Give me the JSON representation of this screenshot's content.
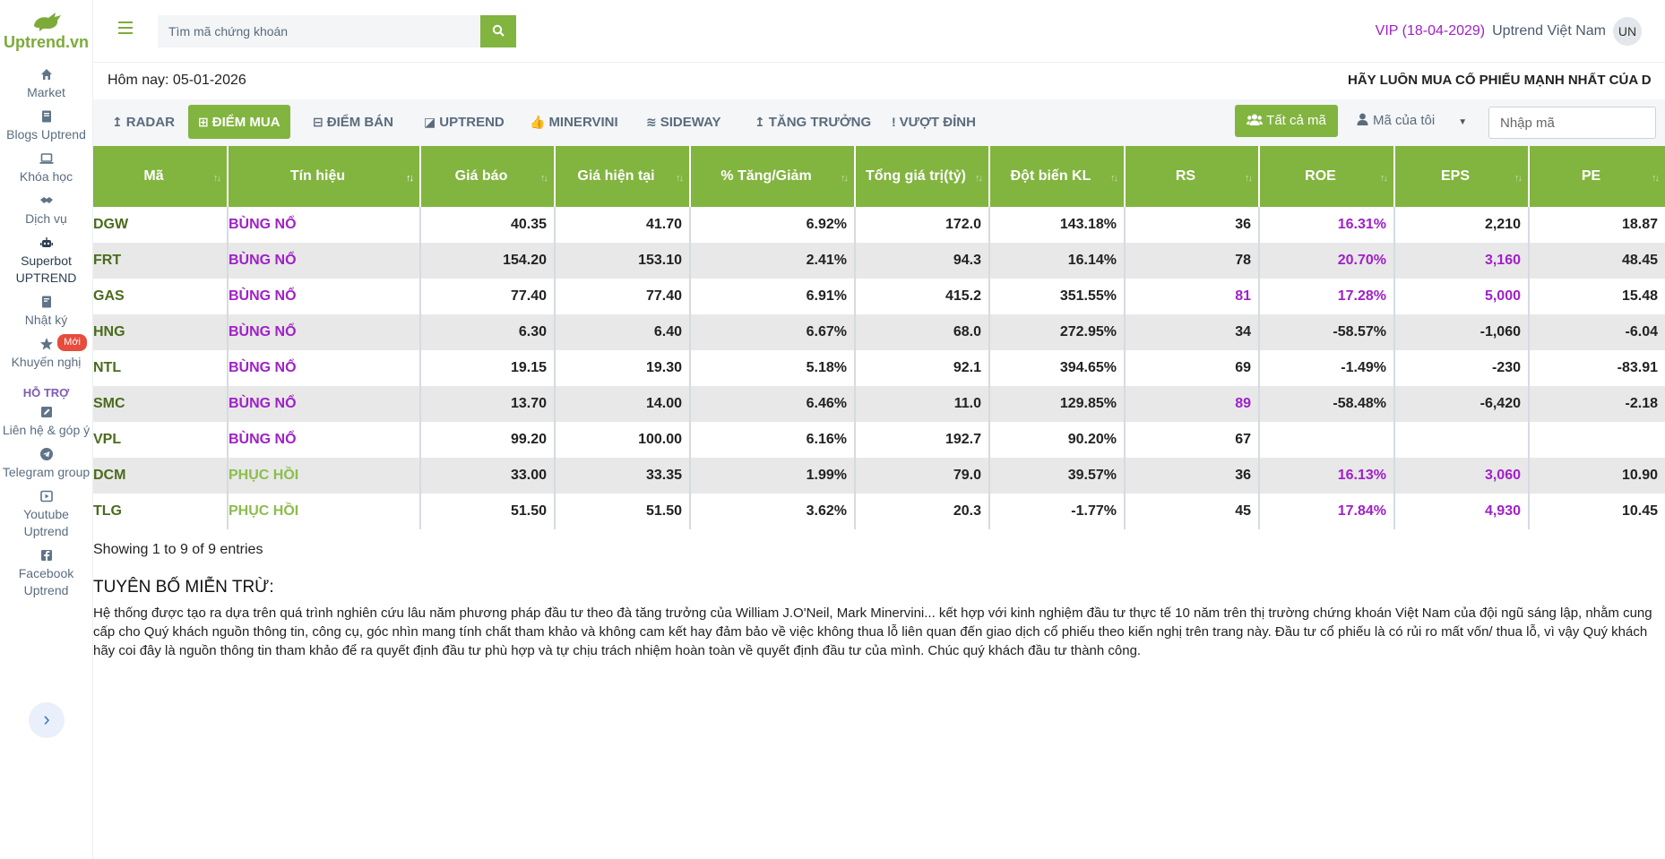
{
  "sidebar": {
    "logo": "Uptrend.vn",
    "items": [
      {
        "label": "Market",
        "icon": "home-icon"
      },
      {
        "label": "Blogs Uptrend",
        "icon": "book-icon"
      },
      {
        "label": "Khóa học",
        "icon": "laptop-icon"
      },
      {
        "label": "Dịch vụ",
        "icon": "handshake-icon"
      },
      {
        "label": "Superbot UPTREND",
        "icon": "robot-icon"
      },
      {
        "label": "Nhật ký",
        "icon": "journal-icon"
      },
      {
        "label": "Khuyến nghị",
        "icon": "star-icon",
        "badge": "Mới"
      }
    ],
    "section": "HỖ TRỢ",
    "support": [
      {
        "label": "Liên hệ & góp ý",
        "icon": "edit-icon"
      },
      {
        "label": "Telegram group",
        "icon": "telegram-icon"
      },
      {
        "label": "Youtube Uptrend",
        "icon": "youtube-icon"
      },
      {
        "label": "Facebook Uptrend",
        "icon": "facebook-icon"
      }
    ],
    "toggle": "›"
  },
  "header": {
    "search_placeholder": "Tìm mã chứng khoán",
    "vip": "VIP (18-04-2029)",
    "username": "Uptrend Việt Nam",
    "avatar": "UN"
  },
  "date_row": {
    "today": "Hôm nay: 05-01-2026",
    "marquee": "HÃY LUÔN MUA CỔ PHIẾU MẠNH NHẤT CỦA D"
  },
  "tabs": [
    {
      "label": "RADAR",
      "icon": "↥"
    },
    {
      "label": "ĐIỂM MUA",
      "icon": "⊞",
      "active": true
    },
    {
      "label": "ĐIỂM BÁN",
      "icon": "⊟"
    },
    {
      "label": "UPTREND",
      "icon": "◪"
    },
    {
      "label": "MINERVINI",
      "icon": "👍"
    },
    {
      "label": "SIDEWAY",
      "icon": "≋"
    },
    {
      "label": "TĂNG TRƯỞNG",
      "icon": "↥"
    },
    {
      "label": "VƯỢT ĐỈNH",
      "icon": "!"
    }
  ],
  "filters": {
    "all_label": "Tất cả mã",
    "my_codes": "Mã của tôi",
    "code_placeholder": "Nhập mã"
  },
  "table": {
    "columns": [
      "Mã",
      "Tín hiệu",
      "Giá báo",
      "Giá hiện tại",
      "% Tăng/Giảm",
      "Tổng giá trị(tỷ)",
      "Đột biến KL",
      "RS",
      "ROE",
      "EPS",
      "PE"
    ],
    "rows": [
      {
        "code": "DGW",
        "signal": "BÙNG NỔ",
        "price_alert": "40.35",
        "price_now": "41.70",
        "change": "6.92%",
        "value": "172.0",
        "vol_spike": "143.18%",
        "rs": "36",
        "roe": "16.31%",
        "eps": "2,210",
        "pe": "18.87"
      },
      {
        "code": "FRT",
        "signal": "BÙNG NỔ",
        "price_alert": "154.20",
        "price_now": "153.10",
        "change": "2.41%",
        "value": "94.3",
        "vol_spike": "16.14%",
        "rs": "78",
        "roe": "20.70%",
        "eps": "3,160",
        "pe": "48.45"
      },
      {
        "code": "GAS",
        "signal": "BÙNG NỔ",
        "price_alert": "77.40",
        "price_now": "77.40",
        "change": "6.91%",
        "value": "415.2",
        "vol_spike": "351.55%",
        "rs": "81",
        "roe": "17.28%",
        "eps": "5,000",
        "pe": "15.48"
      },
      {
        "code": "HNG",
        "signal": "BÙNG NỔ",
        "price_alert": "6.30",
        "price_now": "6.40",
        "change": "6.67%",
        "value": "68.0",
        "vol_spike": "272.95%",
        "rs": "34",
        "roe": "-58.57%",
        "eps": "-1,060",
        "pe": "-6.04"
      },
      {
        "code": "NTL",
        "signal": "BÙNG NỔ",
        "price_alert": "19.15",
        "price_now": "19.30",
        "change": "5.18%",
        "value": "92.1",
        "vol_spike": "394.65%",
        "rs": "69",
        "roe": "-1.49%",
        "eps": "-230",
        "pe": "-83.91"
      },
      {
        "code": "SMC",
        "signal": "BÙNG NỔ",
        "price_alert": "13.70",
        "price_now": "14.00",
        "change": "6.46%",
        "value": "11.0",
        "vol_spike": "129.85%",
        "rs": "89",
        "roe": "-58.48%",
        "eps": "-6,420",
        "pe": "-2.18"
      },
      {
        "code": "VPL",
        "signal": "BÙNG NỔ",
        "price_alert": "99.20",
        "price_now": "100.00",
        "change": "6.16%",
        "value": "192.7",
        "vol_spike": "90.20%",
        "rs": "67",
        "roe": "",
        "eps": "",
        "pe": ""
      },
      {
        "code": "DCM",
        "signal": "PHỤC HỒI",
        "price_alert": "33.00",
        "price_now": "33.35",
        "change": "1.99%",
        "value": "79.0",
        "vol_spike": "39.57%",
        "rs": "36",
        "roe": "16.13%",
        "eps": "3,060",
        "pe": "10.90"
      },
      {
        "code": "TLG",
        "signal": "PHỤC HỒI",
        "price_alert": "51.50",
        "price_now": "51.50",
        "change": "3.62%",
        "value": "20.3",
        "vol_spike": "-1.77%",
        "rs": "45",
        "roe": "17.84%",
        "eps": "4,930",
        "pe": "10.45"
      }
    ],
    "entries": "Showing 1 to 9 of 9 entries"
  },
  "disclaimer": {
    "title": "TUYÊN BỐ MIỄN TRỪ:",
    "text": "Hệ thống được tạo ra dựa trên quá trình nghiên cứu lâu năm phương pháp đầu tư theo đà tăng trưởng của William J.O'Neil, Mark Minervini... kết hợp với kinh nghiệm đầu tư thực tế 10 năm trên thị trường chứng khoán Việt Nam của đội ngũ sáng lập, nhằm cung cấp cho Quý khách nguồn thông tin, công cụ, góc nhìn mang tính chất tham khảo và không cam kết hay đảm bảo về việc không thua lỗ liên quan đến giao dịch cổ phiếu theo kiến nghị trên trang này. Đầu tư cổ phiếu là có rủi ro mất vốn/ thua lỗ, vì vậy Quý khách hãy coi đây là nguồn thông tin tham khảo để ra quyết định đầu tư phù hợp và tự chịu trách nhiệm hoàn toàn về quyết định đầu tư của mình. Chúc quý khách đầu tư thành công."
  },
  "colors": {
    "accent": "#82b440",
    "signal_strong": "#a020c8",
    "signal_recover": "#8cbd4c"
  }
}
